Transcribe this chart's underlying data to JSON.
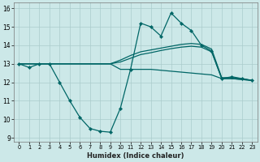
{
  "xlabel": "Humidex (Indice chaleur)",
  "background_color": "#cce8e8",
  "grid_color": "#aacccc",
  "line_color": "#006666",
  "xlim": [
    -0.5,
    23.5
  ],
  "ylim": [
    8.8,
    16.3
  ],
  "yticks": [
    9,
    10,
    11,
    12,
    13,
    14,
    15,
    16
  ],
  "xticks": [
    0,
    1,
    2,
    3,
    4,
    5,
    6,
    7,
    8,
    9,
    10,
    11,
    12,
    13,
    14,
    15,
    16,
    17,
    18,
    19,
    20,
    21,
    22,
    23
  ],
  "series": [
    {
      "x": [
        0,
        1,
        2,
        3,
        4,
        5,
        6,
        7,
        8,
        9,
        10,
        11,
        12,
        13,
        14,
        15,
        16,
        17,
        18,
        19,
        20,
        21,
        22,
        23
      ],
      "y": [
        13.0,
        12.8,
        13.0,
        13.0,
        12.0,
        11.0,
        10.1,
        9.5,
        9.35,
        9.3,
        10.6,
        12.7,
        15.2,
        15.0,
        14.5,
        15.75,
        15.2,
        14.8,
        14.0,
        13.7,
        12.2,
        12.3,
        12.2,
        12.1
      ],
      "has_markers": true
    },
    {
      "x": [
        0,
        1,
        2,
        3,
        4,
        5,
        6,
        7,
        8,
        9,
        10,
        11,
        12,
        13,
        14,
        15,
        16,
        17,
        18,
        19,
        20,
        21,
        22,
        23
      ],
      "y": [
        13.0,
        13.0,
        13.0,
        13.0,
        13.0,
        13.0,
        13.0,
        13.0,
        13.0,
        13.0,
        13.2,
        13.45,
        13.65,
        13.75,
        13.85,
        13.95,
        14.05,
        14.1,
        14.05,
        13.8,
        12.25,
        12.25,
        12.2,
        12.1
      ],
      "has_markers": false
    },
    {
      "x": [
        0,
        1,
        2,
        3,
        4,
        5,
        6,
        7,
        8,
        9,
        10,
        11,
        12,
        13,
        14,
        15,
        16,
        17,
        18,
        19,
        20,
        21,
        22,
        23
      ],
      "y": [
        13.0,
        13.0,
        13.0,
        13.0,
        13.0,
        13.0,
        13.0,
        13.0,
        13.0,
        13.0,
        13.1,
        13.3,
        13.5,
        13.6,
        13.72,
        13.82,
        13.9,
        13.95,
        13.9,
        13.65,
        12.2,
        12.2,
        12.15,
        12.1
      ],
      "has_markers": false
    },
    {
      "x": [
        0,
        1,
        2,
        3,
        4,
        5,
        6,
        7,
        8,
        9,
        10,
        11,
        12,
        13,
        14,
        15,
        16,
        17,
        18,
        19,
        20,
        21,
        22,
        23
      ],
      "y": [
        13.0,
        13.0,
        13.0,
        13.0,
        13.0,
        13.0,
        13.0,
        13.0,
        13.0,
        13.0,
        12.7,
        12.7,
        12.7,
        12.7,
        12.65,
        12.6,
        12.55,
        12.5,
        12.45,
        12.4,
        12.2,
        12.2,
        12.15,
        12.1
      ],
      "has_markers": false
    }
  ]
}
